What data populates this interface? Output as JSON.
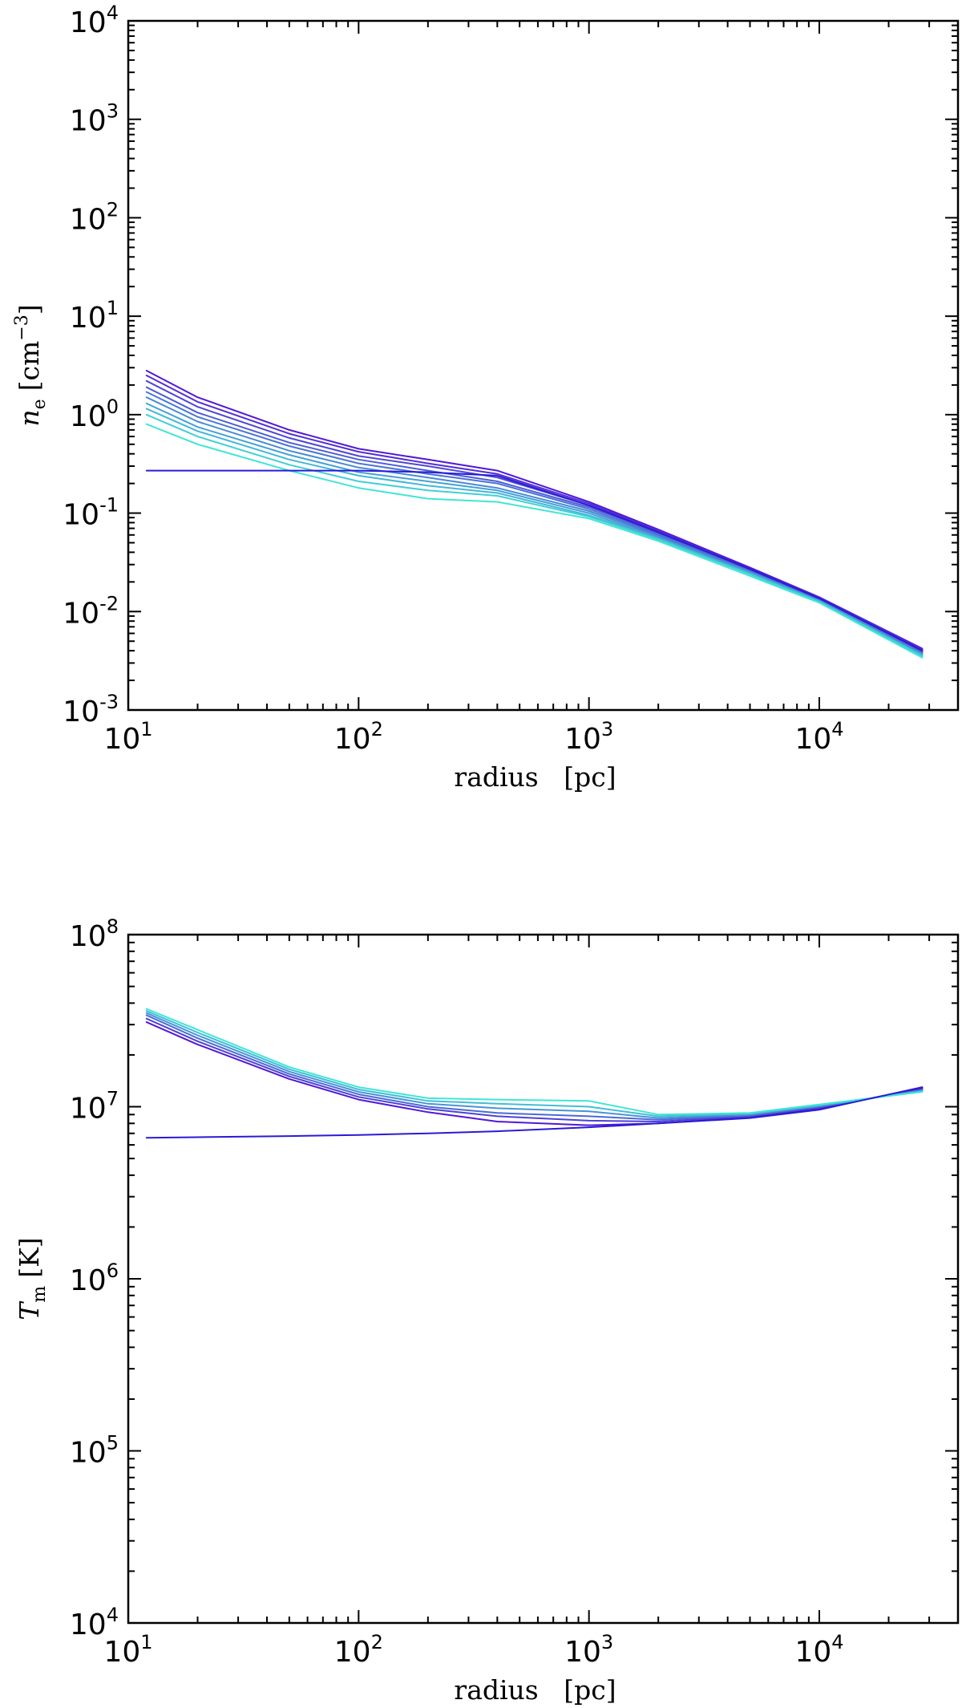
{
  "chart_data": [
    {
      "type": "line",
      "xscale": "log",
      "yscale": "log",
      "xlabel": "radius   [pc]",
      "ylabel": {
        "symbol": "n",
        "subscript": "e",
        "unit_prefix": "[cm",
        "unit_exp": "−3",
        "unit_suffix": "]"
      },
      "xlim": [
        10,
        40000
      ],
      "ylim": [
        0.001,
        10000
      ],
      "x_ticks": [
        {
          "base": "10",
          "exp": "1",
          "value": 10
        },
        {
          "base": "10",
          "exp": "2",
          "value": 100
        },
        {
          "base": "10",
          "exp": "3",
          "value": 1000
        },
        {
          "base": "10",
          "exp": "4",
          "value": 10000
        }
      ],
      "y_ticks": [
        {
          "base": "10",
          "exp": "-3",
          "value": 0.001
        },
        {
          "base": "10",
          "exp": "-2",
          "value": 0.01
        },
        {
          "base": "10",
          "exp": "-1",
          "value": 0.1
        },
        {
          "base": "10",
          "exp": "0",
          "value": 1
        },
        {
          "base": "10",
          "exp": "1",
          "value": 10
        },
        {
          "base": "10",
          "exp": "2",
          "value": 100
        },
        {
          "base": "10",
          "exp": "3",
          "value": 1000
        },
        {
          "base": "10",
          "exp": "4",
          "value": 10000
        }
      ],
      "color_start": "#5218d6",
      "color_end": "#3fe6d6",
      "x": [
        12,
        20,
        50,
        100,
        200,
        400,
        1000,
        2000,
        5000,
        10000,
        28000
      ],
      "series": [
        {
          "values": [
            2.8,
            1.5,
            0.7,
            0.45,
            0.35,
            0.27,
            0.13,
            0.068,
            0.028,
            0.014,
            0.0042
          ]
        },
        {
          "values": [
            2.5,
            1.35,
            0.64,
            0.42,
            0.32,
            0.25,
            0.125,
            0.066,
            0.027,
            0.0138,
            0.0041
          ]
        },
        {
          "values": [
            2.2,
            1.2,
            0.58,
            0.38,
            0.3,
            0.23,
            0.12,
            0.064,
            0.027,
            0.0136,
            0.004
          ]
        },
        {
          "values": [
            1.9,
            1.05,
            0.52,
            0.35,
            0.27,
            0.21,
            0.115,
            0.062,
            0.026,
            0.0134,
            0.0039
          ]
        },
        {
          "values": [
            1.7,
            0.95,
            0.48,
            0.32,
            0.25,
            0.2,
            0.11,
            0.06,
            0.026,
            0.0132,
            0.0038
          ]
        },
        {
          "values": [
            1.5,
            0.85,
            0.43,
            0.29,
            0.23,
            0.18,
            0.105,
            0.058,
            0.025,
            0.013,
            0.0037
          ]
        },
        {
          "values": [
            1.3,
            0.75,
            0.39,
            0.26,
            0.21,
            0.17,
            0.1,
            0.056,
            0.025,
            0.0128,
            0.0036
          ]
        },
        {
          "values": [
            1.15,
            0.68,
            0.35,
            0.24,
            0.19,
            0.16,
            0.095,
            0.055,
            0.024,
            0.0126,
            0.0036
          ]
        },
        {
          "values": [
            1.0,
            0.6,
            0.31,
            0.21,
            0.17,
            0.15,
            0.092,
            0.054,
            0.024,
            0.0125,
            0.0035
          ]
        },
        {
          "values": [
            0.8,
            0.5,
            0.27,
            0.18,
            0.14,
            0.13,
            0.088,
            0.052,
            0.023,
            0.0123,
            0.0034
          ]
        },
        {
          "values": [
            0.27,
            0.27,
            0.27,
            0.27,
            0.26,
            0.24,
            0.12,
            0.064,
            0.027,
            0.0136,
            0.004
          ]
        }
      ]
    },
    {
      "type": "line",
      "xscale": "log",
      "yscale": "log",
      "xlabel": "radius   [pc]",
      "ylabel": {
        "symbol": "T",
        "subscript": "m",
        "unit_prefix": "[K]",
        "unit_exp": "",
        "unit_suffix": ""
      },
      "xlim": [
        10,
        40000
      ],
      "ylim": [
        10000,
        100000000
      ],
      "x_ticks": [
        {
          "base": "10",
          "exp": "1",
          "value": 10
        },
        {
          "base": "10",
          "exp": "2",
          "value": 100
        },
        {
          "base": "10",
          "exp": "3",
          "value": 1000
        },
        {
          "base": "10",
          "exp": "4",
          "value": 10000
        }
      ],
      "y_ticks": [
        {
          "base": "10",
          "exp": "4",
          "value": 10000
        },
        {
          "base": "10",
          "exp": "5",
          "value": 100000
        },
        {
          "base": "10",
          "exp": "6",
          "value": 1000000
        },
        {
          "base": "10",
          "exp": "7",
          "value": 10000000
        },
        {
          "base": "10",
          "exp": "8",
          "value": 100000000
        }
      ],
      "color_start": "#5218d6",
      "color_end": "#3fe6d6",
      "x": [
        12,
        20,
        50,
        100,
        200,
        400,
        1000,
        2000,
        5000,
        10000,
        28000
      ],
      "series": [
        {
          "values": [
            31000000,
            23000000,
            14500000,
            11000000,
            9300000,
            8200000,
            7800000,
            8000000,
            8700000,
            9800000,
            12800000
          ]
        },
        {
          "values": [
            32500000,
            24000000,
            15000000,
            11400000,
            9700000,
            8800000,
            8300000,
            8200000,
            8800000,
            9900000,
            12600000
          ]
        },
        {
          "values": [
            34000000,
            25000000,
            15500000,
            11800000,
            10000000,
            9200000,
            8800000,
            8400000,
            8900000,
            10000000,
            12500000
          ]
        },
        {
          "values": [
            35000000,
            26000000,
            16000000,
            12200000,
            10400000,
            9800000,
            9400000,
            8600000,
            9000000,
            10100000,
            12400000
          ]
        },
        {
          "values": [
            36000000,
            27000000,
            16500000,
            12600000,
            10800000,
            10400000,
            10000000,
            8800000,
            9100000,
            10200000,
            12300000
          ]
        },
        {
          "values": [
            37000000,
            28000000,
            17000000,
            13000000,
            11200000,
            11000000,
            10800000,
            9000000,
            9200000,
            10300000,
            12200000
          ]
        },
        {
          "values": [
            6600000,
            6650000,
            6750000,
            6850000,
            7000000,
            7200000,
            7600000,
            8000000,
            8600000,
            9600000,
            13000000
          ]
        }
      ]
    }
  ]
}
